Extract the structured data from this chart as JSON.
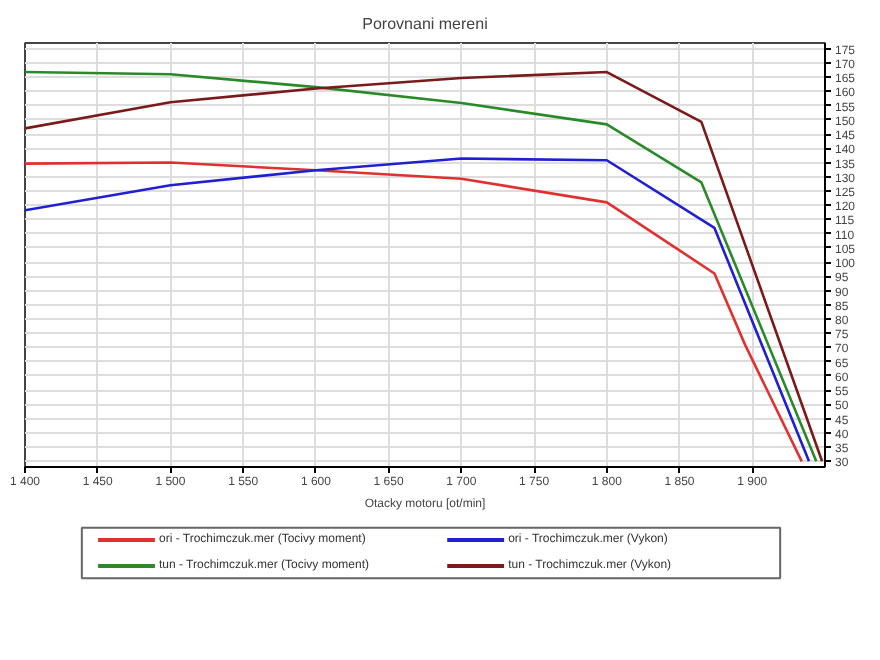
{
  "chart_data": {
    "type": "line",
    "title": "Porovnani mereni",
    "xlabel": "Otacky motoru [ot/min]",
    "xlim": [
      1400,
      1950
    ],
    "xticks": [
      {
        "value": 1400,
        "label": "1 400"
      },
      {
        "value": 1450,
        "label": "1 450"
      },
      {
        "value": 1500,
        "label": "1 500"
      },
      {
        "value": 1550,
        "label": "1 550"
      },
      {
        "value": 1600,
        "label": "1 600"
      },
      {
        "value": 1650,
        "label": "1 650"
      },
      {
        "value": 1700,
        "label": "1 700"
      },
      {
        "value": 1750,
        "label": "1 750"
      },
      {
        "value": 1800,
        "label": "1 800"
      },
      {
        "value": 1850,
        "label": "1 850"
      },
      {
        "value": 1900,
        "label": "1 900"
      }
    ],
    "ylim": [
      28,
      177
    ],
    "yticks": [
      30,
      35,
      40,
      45,
      50,
      55,
      60,
      65,
      70,
      75,
      80,
      85,
      90,
      95,
      100,
      105,
      110,
      115,
      120,
      125,
      130,
      135,
      140,
      145,
      150,
      155,
      160,
      165,
      170,
      175
    ],
    "grid": true,
    "legend": "bottom",
    "marker": "none",
    "line_style": "solid",
    "series": [
      {
        "name": "ori - Trochimczuk.mer  (Tocivy moment)",
        "color": "#e03030",
        "x": [
          1400,
          1500,
          1600,
          1700,
          1800,
          1874,
          1895,
          1934
        ],
        "values": [
          134.6,
          135,
          132.3,
          129.3,
          121,
          96,
          71,
          30
        ]
      },
      {
        "name": "tun - Trochimczuk.mer  (Tocivy moment)",
        "color": "#2a8a2a",
        "x": [
          1400,
          1500,
          1600,
          1700,
          1800,
          1865,
          1944
        ],
        "values": [
          166.8,
          166,
          161.5,
          155.9,
          148.4,
          128,
          30
        ]
      },
      {
        "name": "ori - Trochimczuk.mer  (Vykon)",
        "color": "#2020d0",
        "x": [
          1400,
          1500,
          1600,
          1700,
          1800,
          1874,
          1939
        ],
        "values": [
          118.2,
          127,
          132.3,
          136.4,
          135.8,
          112,
          30
        ]
      },
      {
        "name": "tun - Trochimczuk.mer  (Vykon)",
        "color": "#7a1a1a",
        "x": [
          1400,
          1500,
          1600,
          1700,
          1800,
          1865,
          1948
        ],
        "values": [
          147,
          156.2,
          161,
          164.7,
          166.8,
          149.3,
          30
        ]
      }
    ]
  }
}
